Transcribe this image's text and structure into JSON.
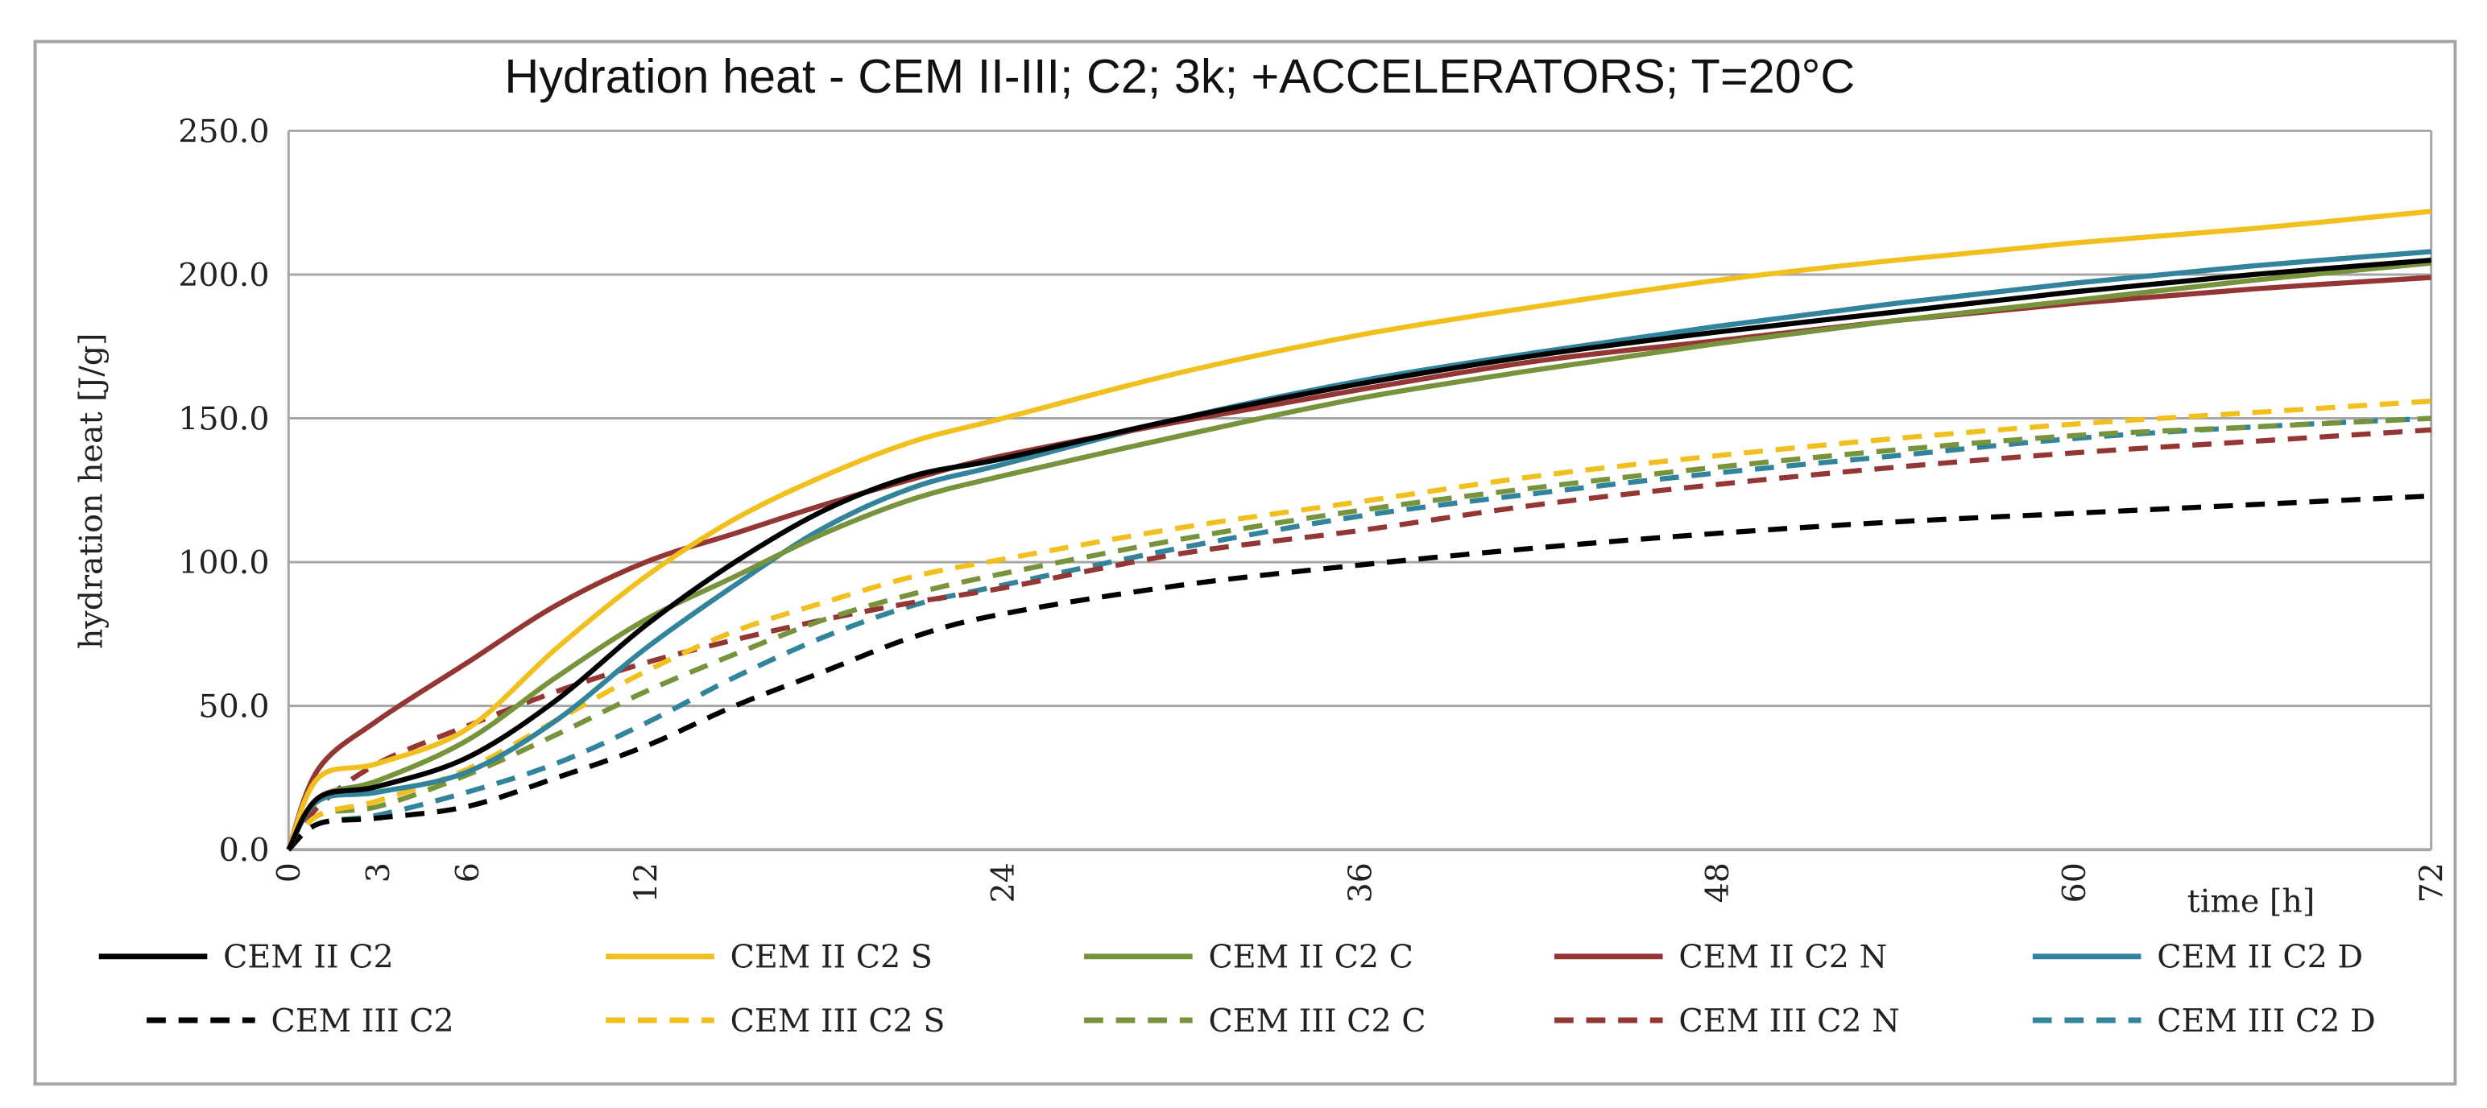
{
  "chart_data": {
    "type": "line",
    "title": "Hydration heat - CEM II-III; C2; 3k; +ACCELERATORS; T=20°C",
    "xlabel": "time [h]",
    "ylabel": "hydration heat [J/g]",
    "xlim": [
      0,
      72
    ],
    "ylim": [
      0,
      250
    ],
    "x_ticks": [
      0,
      3,
      6,
      12,
      24,
      36,
      48,
      60,
      72
    ],
    "y_ticks": [
      "0.0",
      "50.0",
      "100.0",
      "150.0",
      "200.0",
      "250.0"
    ],
    "y_tick_values": [
      0,
      50,
      100,
      150,
      200,
      250
    ],
    "grid": "horizontal",
    "legend_placement": "bottom",
    "x": [
      0,
      1,
      3,
      6,
      9,
      12,
      15,
      18,
      21,
      24,
      30,
      36,
      42,
      48,
      54,
      60,
      66,
      72
    ],
    "series": [
      {
        "name": "CEM II C2",
        "color": "#000000",
        "dash": false,
        "values": [
          0,
          18,
          22,
          32,
          52,
          78,
          100,
          118,
          130,
          136,
          150,
          162,
          172,
          180,
          187,
          194,
          200,
          205
        ]
      },
      {
        "name": "CEM II C2 S",
        "color": "#f2c01e",
        "dash": false,
        "values": [
          0,
          25,
          30,
          42,
          70,
          95,
          115,
          130,
          142,
          150,
          166,
          179,
          189,
          198,
          205,
          211,
          216,
          222
        ]
      },
      {
        "name": "CEM II C2 C",
        "color": "#77933c",
        "dash": false,
        "values": [
          0,
          18,
          24,
          38,
          60,
          80,
          95,
          110,
          122,
          130,
          144,
          157,
          167,
          176,
          184,
          191,
          198,
          204
        ]
      },
      {
        "name": "CEM II C2 N",
        "color": "#943634",
        "dash": false,
        "values": [
          0,
          28,
          45,
          65,
          85,
          100,
          110,
          120,
          129,
          137,
          149,
          160,
          170,
          177,
          184,
          190,
          195,
          199
        ]
      },
      {
        "name": "CEM II C2 D",
        "color": "#31849b",
        "dash": false,
        "values": [
          0,
          17,
          20,
          27,
          45,
          70,
          92,
          112,
          126,
          134,
          150,
          163,
          173,
          182,
          190,
          197,
          203,
          208
        ]
      },
      {
        "name": "CEM III C2",
        "color": "#000000",
        "dash": true,
        "values": [
          0,
          9,
          11,
          15,
          25,
          36,
          50,
          62,
          74,
          82,
          92,
          99,
          105,
          110,
          114,
          117,
          120,
          123
        ]
      },
      {
        "name": "CEM III C2 S",
        "color": "#f2c01e",
        "dash": true,
        "values": [
          0,
          12,
          17,
          28,
          45,
          62,
          76,
          86,
          95,
          101,
          112,
          121,
          130,
          137,
          143,
          148,
          152,
          156
        ]
      },
      {
        "name": "CEM III C2 C",
        "color": "#77933c",
        "dash": true,
        "values": [
          0,
          12,
          15,
          26,
          40,
          55,
          68,
          80,
          89,
          96,
          108,
          118,
          126,
          133,
          139,
          144,
          147,
          150
        ]
      },
      {
        "name": "CEM III C2 N",
        "color": "#943634",
        "dash": true,
        "values": [
          0,
          15,
          30,
          43,
          55,
          65,
          73,
          80,
          86,
          91,
          103,
          111,
          120,
          127,
          133,
          138,
          142,
          146
        ]
      },
      {
        "name": "CEM III C2 D",
        "color": "#31849b",
        "dash": true,
        "values": [
          0,
          9,
          12,
          20,
          30,
          44,
          60,
          74,
          85,
          92,
          105,
          116,
          124,
          131,
          137,
          143,
          147,
          150
        ]
      }
    ]
  }
}
